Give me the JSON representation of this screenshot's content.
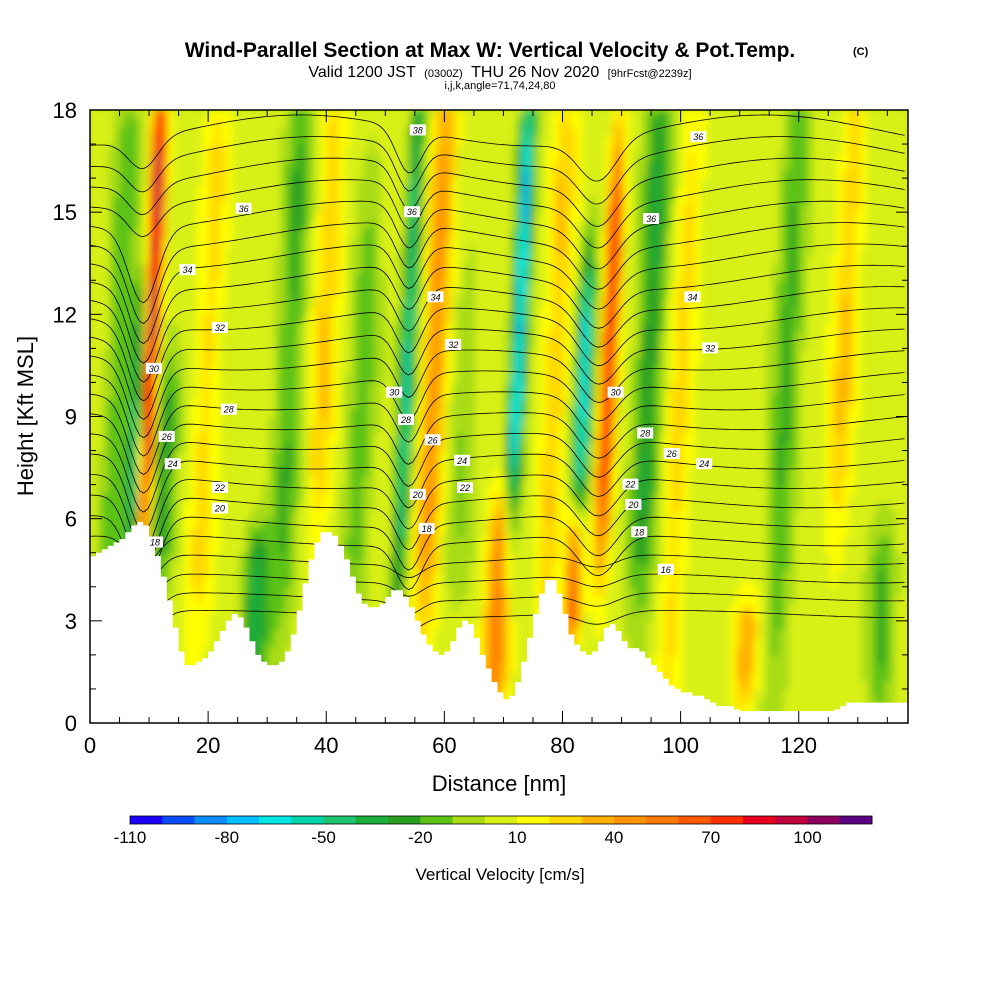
{
  "title": {
    "main": "Wind-Parallel Section at Max W: Vertical Velocity & Pot.Temp.",
    "mark": "(C)",
    "line2_a": "Valid 1200 JST",
    "line2_b": "(0300Z)",
    "line2_c": "THU 26 Nov 2020",
    "line2_d": "[9hrFcst@2239z]",
    "line3": "i,j,k,angle=71,74,24,80"
  },
  "chart_data": {
    "type": "heatmap",
    "xlabel": "Distance [nm]",
    "ylabel": "Height [Kft MSL]",
    "xlim": [
      0,
      138.5
    ],
    "ylim": [
      0,
      18
    ],
    "x_ticks": [
      0,
      20,
      40,
      60,
      80,
      100,
      120
    ],
    "y_ticks": [
      0,
      3,
      6,
      9,
      12,
      15,
      18
    ],
    "colorbar": {
      "title": "Vertical Velocity [cm/s]",
      "levels": [
        -110,
        -100,
        -90,
        -80,
        -70,
        -60,
        -50,
        -40,
        -30,
        -20,
        -10,
        0,
        10,
        20,
        30,
        40,
        50,
        60,
        70,
        80,
        90,
        100,
        110
      ],
      "tick_labels": [
        -110,
        -80,
        -50,
        -20,
        10,
        40,
        70,
        100
      ],
      "colors": [
        "#1a00ff",
        "#0a4cff",
        "#0a8cff",
        "#00bfff",
        "#00e6e6",
        "#00d4a8",
        "#1fc470",
        "#1aae3a",
        "#2aa020",
        "#5cc214",
        "#a8dc14",
        "#d8f014",
        "#ffff00",
        "#ffd900",
        "#ffb000",
        "#ff9400",
        "#ff7a00",
        "#ff5a00",
        "#ff3000",
        "#e8001e",
        "#c0003c",
        "#900060",
        "#5a0080"
      ]
    },
    "velocity_features": [
      {
        "x": 10.5,
        "ybot": 6,
        "ytop": 18,
        "peak": 95
      },
      {
        "x": 8.0,
        "ybot": 5.5,
        "ytop": 12,
        "peak": -60
      },
      {
        "x": 12.5,
        "ybot": 5,
        "ytop": 10,
        "peak": -30
      },
      {
        "x": 5.0,
        "ybot": 4,
        "ytop": 18,
        "peak": -20
      },
      {
        "x": 20.0,
        "ybot": 3,
        "ytop": 18,
        "peak": 20
      },
      {
        "x": 28.0,
        "ybot": 1.8,
        "ytop": 5,
        "peak": -40
      },
      {
        "x": 34.0,
        "ybot": 4,
        "ytop": 18,
        "peak": -25
      },
      {
        "x": 40.0,
        "ybot": 6,
        "ytop": 18,
        "peak": 25
      },
      {
        "x": 46.0,
        "ybot": 4,
        "ytop": 15,
        "peak": -20
      },
      {
        "x": 54.0,
        "ybot": 4.5,
        "ytop": 18,
        "peak": -55
      },
      {
        "x": 58.5,
        "ybot": 4,
        "ytop": 18,
        "peak": 40
      },
      {
        "x": 63.0,
        "ybot": 5,
        "ytop": 12,
        "peak": -15
      },
      {
        "x": 69.0,
        "ybot": 1,
        "ytop": 6,
        "peak": 50
      },
      {
        "x": 73.0,
        "ybot": 7,
        "ytop": 18,
        "peak": -75
      },
      {
        "x": 79.0,
        "ybot": 4,
        "ytop": 18,
        "peak": 25
      },
      {
        "x": 83.5,
        "ybot": 6,
        "ytop": 13,
        "peak": -70
      },
      {
        "x": 82.0,
        "ybot": 3,
        "ytop": 6,
        "peak": 70
      },
      {
        "x": 88.0,
        "ybot": 6,
        "ytop": 16,
        "peak": 75
      },
      {
        "x": 95.0,
        "ybot": 5,
        "ytop": 18,
        "peak": -35
      },
      {
        "x": 100.0,
        "ybot": 1,
        "ytop": 18,
        "peak": 20
      },
      {
        "x": 111.0,
        "ybot": 1,
        "ytop": 3,
        "peak": 35
      },
      {
        "x": 118.0,
        "ybot": 3,
        "ytop": 18,
        "peak": -25
      },
      {
        "x": 128.0,
        "ybot": 6,
        "ytop": 18,
        "peak": 25
      },
      {
        "x": 134.0,
        "ybot": 1,
        "ytop": 5,
        "peak": -25
      }
    ],
    "theta_contours": {
      "units": "degC",
      "levels": [
        14,
        15,
        16,
        17,
        18,
        19,
        20,
        21,
        22,
        23,
        24,
        25,
        26,
        27,
        28,
        29,
        30,
        31,
        32,
        33,
        34,
        35,
        36,
        37,
        38
      ],
      "labels": [
        {
          "text": "38",
          "x": 55.5,
          "y": 17.4
        },
        {
          "text": "36",
          "x": 103.0,
          "y": 17.2
        },
        {
          "text": "36",
          "x": 26.0,
          "y": 15.1
        },
        {
          "text": "36",
          "x": 54.5,
          "y": 15.0
        },
        {
          "text": "36",
          "x": 95.0,
          "y": 14.8
        },
        {
          "text": "34",
          "x": 16.5,
          "y": 13.3
        },
        {
          "text": "34",
          "x": 58.5,
          "y": 12.5
        },
        {
          "text": "34",
          "x": 102.0,
          "y": 12.5
        },
        {
          "text": "32",
          "x": 22.0,
          "y": 11.6
        },
        {
          "text": "32",
          "x": 61.5,
          "y": 11.1
        },
        {
          "text": "32",
          "x": 105.0,
          "y": 11.0
        },
        {
          "text": "30",
          "x": 10.8,
          "y": 10.4
        },
        {
          "text": "30",
          "x": 51.5,
          "y": 9.7
        },
        {
          "text": "30",
          "x": 89.0,
          "y": 9.7
        },
        {
          "text": "28",
          "x": 23.5,
          "y": 9.2
        },
        {
          "text": "28",
          "x": 53.5,
          "y": 8.9
        },
        {
          "text": "28",
          "x": 94.0,
          "y": 8.5
        },
        {
          "text": "26",
          "x": 13.0,
          "y": 8.4
        },
        {
          "text": "26",
          "x": 58.0,
          "y": 8.3
        },
        {
          "text": "26",
          "x": 98.5,
          "y": 7.9
        },
        {
          "text": "24",
          "x": 14.0,
          "y": 7.6
        },
        {
          "text": "24",
          "x": 63.0,
          "y": 7.7
        },
        {
          "text": "24",
          "x": 104.0,
          "y": 7.6
        },
        {
          "text": "22",
          "x": 22.0,
          "y": 6.9
        },
        {
          "text": "22",
          "x": 63.5,
          "y": 6.9
        },
        {
          "text": "22",
          "x": 91.5,
          "y": 7.0
        },
        {
          "text": "20",
          "x": 22.0,
          "y": 6.3
        },
        {
          "text": "20",
          "x": 55.5,
          "y": 6.7
        },
        {
          "text": "20",
          "x": 92.0,
          "y": 6.4
        },
        {
          "text": "18",
          "x": 57.0,
          "y": 5.7
        },
        {
          "text": "18",
          "x": 93.0,
          "y": 5.6
        },
        {
          "text": "18",
          "x": 11.0,
          "y": 5.3
        },
        {
          "text": "16",
          "x": 97.5,
          "y": 4.5
        }
      ]
    },
    "terrain": {
      "x": [
        0,
        1,
        2,
        3,
        4,
        5,
        6,
        7,
        8,
        9,
        10,
        11,
        12,
        13,
        14,
        15,
        16,
        17,
        18,
        19,
        20,
        21,
        22,
        23,
        24,
        25,
        26,
        27,
        28,
        29,
        30,
        31,
        32,
        33,
        34,
        35,
        36,
        37,
        38,
        39,
        40,
        41,
        42,
        43,
        44,
        45,
        46,
        47,
        48,
        49,
        50,
        51,
        52,
        53,
        54,
        55,
        56,
        57,
        58,
        59,
        60,
        61,
        62,
        63,
        64,
        65,
        66,
        67,
        68,
        69,
        70,
        71,
        72,
        73,
        74,
        75,
        76,
        77,
        78,
        79,
        80,
        81,
        82,
        83,
        84,
        85,
        86,
        87,
        88,
        89,
        90,
        91,
        92,
        93,
        94,
        95,
        96,
        97,
        98,
        99,
        100,
        101,
        102,
        103,
        104,
        105,
        106,
        107,
        108,
        109,
        110,
        111,
        112,
        113,
        114,
        115,
        116,
        117,
        118,
        119,
        120,
        121,
        122,
        123,
        124,
        125,
        126,
        127,
        128,
        129,
        130,
        131,
        132,
        133,
        134,
        135,
        136,
        137,
        138
      ],
      "height_kft": [
        4.9,
        5.0,
        5.1,
        5.2,
        5.3,
        5.4,
        5.6,
        5.8,
        5.9,
        5.8,
        5.4,
        4.9,
        4.3,
        3.6,
        2.8,
        2.1,
        1.7,
        1.7,
        1.8,
        1.9,
        2.1,
        2.4,
        2.7,
        3.0,
        3.2,
        3.1,
        2.8,
        2.4,
        2.0,
        1.8,
        1.7,
        1.7,
        1.8,
        2.1,
        2.6,
        3.3,
        4.1,
        4.8,
        5.3,
        5.6,
        5.6,
        5.5,
        5.2,
        4.8,
        4.3,
        3.8,
        3.5,
        3.4,
        3.4,
        3.5,
        3.7,
        3.9,
        3.9,
        3.7,
        3.4,
        3.0,
        2.6,
        2.3,
        2.1,
        2.0,
        2.1,
        2.4,
        2.8,
        3.0,
        2.9,
        2.5,
        2.0,
        1.6,
        1.2,
        0.9,
        0.7,
        0.8,
        1.2,
        1.8,
        2.5,
        3.2,
        3.8,
        4.2,
        4.2,
        3.8,
        3.2,
        2.6,
        2.3,
        2.1,
        2.0,
        2.1,
        2.4,
        2.8,
        2.9,
        2.7,
        2.4,
        2.2,
        2.2,
        2.1,
        1.9,
        1.7,
        1.5,
        1.3,
        1.1,
        1.0,
        0.9,
        0.9,
        0.8,
        0.8,
        0.7,
        0.6,
        0.5,
        0.5,
        0.5,
        0.4,
        0.35,
        0.35,
        0.35,
        0.35,
        0.35,
        0.35,
        0.35,
        0.35,
        0.35,
        0.35,
        0.35,
        0.35,
        0.35,
        0.35,
        0.35,
        0.35,
        0.4,
        0.5,
        0.6,
        0.6,
        0.6,
        0.6,
        0.6,
        0.6,
        0.6,
        0.6,
        0.6,
        0.6,
        0.6
      ]
    }
  }
}
